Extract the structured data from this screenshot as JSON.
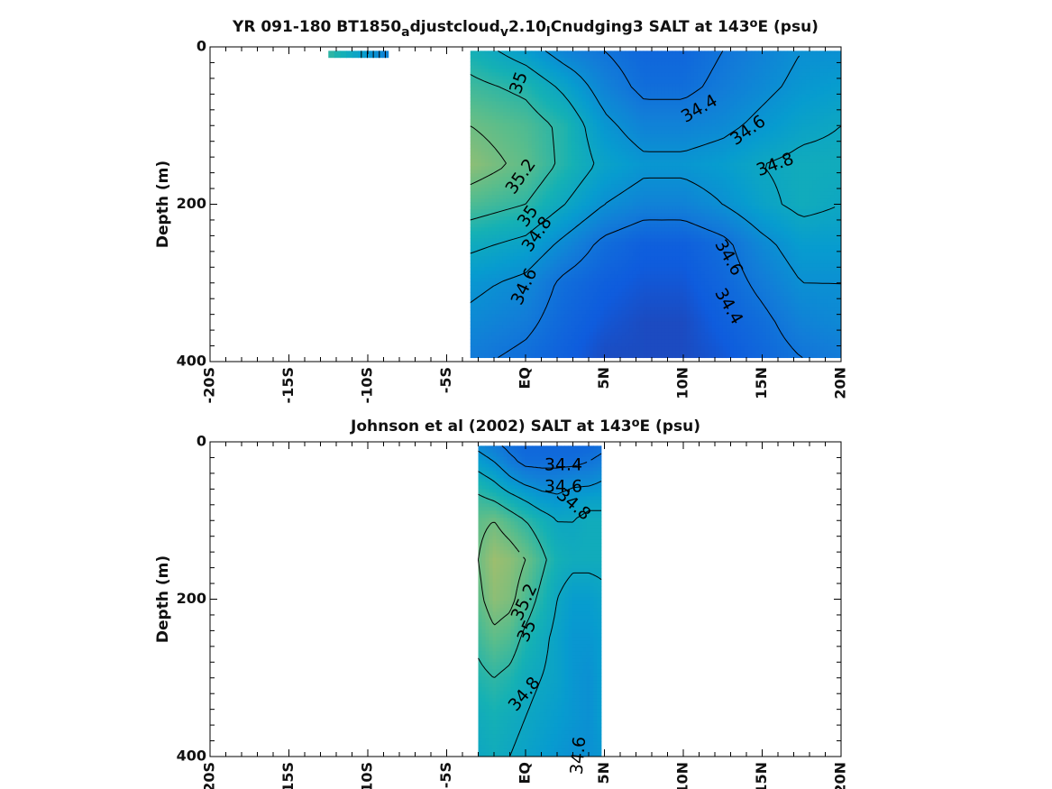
{
  "chart_data": [
    {
      "type": "heatmap",
      "title_parts": [
        "YR 091-180 BT1850",
        "a",
        "djustcloud",
        "v",
        "2.10",
        "l",
        "Cnudging3 SALT at 143",
        "o",
        "E (psu)"
      ],
      "ylabel": "Depth (m)",
      "xlim": [
        -20,
        20
      ],
      "ylim": [
        0,
        400
      ],
      "y_reversed": true,
      "x_ticks": [
        -20,
        -15,
        -10,
        -5,
        0,
        5,
        10,
        15,
        20
      ],
      "x_tick_labels": [
        "-20S",
        "-15S",
        "-10S",
        "-5S",
        "EQ",
        "5N",
        "10N",
        "15N",
        "20N"
      ],
      "y_ticks": [
        0,
        200,
        400
      ],
      "y_tick_labels": [
        "0",
        "200",
        "400"
      ],
      "data_extent": {
        "x": [
          -3.5,
          20
        ],
        "depth": [
          5,
          395
        ]
      },
      "small_patch_extent": {
        "x": [
          -12.5,
          -8.7
        ],
        "depth": [
          5,
          14
        ]
      },
      "colormap": "parula",
      "color_range": [
        34.0,
        35.6
      ],
      "grid": {
        "x": [
          -3.5,
          0,
          2.5,
          5,
          7.5,
          10,
          12.5,
          15,
          17.5,
          20
        ],
        "depth": [
          5,
          50,
          100,
          150,
          200,
          250,
          300,
          350,
          395
        ],
        "values": [
          [
            34.9,
            34.7,
            34.5,
            34.4,
            34.3,
            34.3,
            34.4,
            34.5,
            34.6,
            34.6
          ],
          [
            35.05,
            34.95,
            34.75,
            34.5,
            34.35,
            34.35,
            34.45,
            34.55,
            34.65,
            34.7
          ],
          [
            35.2,
            35.1,
            34.95,
            34.65,
            34.5,
            34.5,
            34.55,
            34.65,
            34.75,
            34.8
          ],
          [
            35.3,
            35.15,
            34.95,
            34.75,
            34.65,
            34.65,
            34.7,
            34.8,
            34.85,
            34.85
          ],
          [
            35.1,
            35.0,
            34.8,
            34.6,
            34.5,
            34.5,
            34.6,
            34.75,
            34.85,
            34.8
          ],
          [
            34.85,
            34.75,
            34.55,
            34.35,
            34.25,
            34.25,
            34.35,
            34.55,
            34.7,
            34.7
          ],
          [
            34.65,
            34.55,
            34.35,
            34.25,
            34.2,
            34.2,
            34.3,
            34.45,
            34.6,
            34.6
          ],
          [
            34.55,
            34.45,
            34.3,
            34.2,
            34.15,
            34.15,
            34.25,
            34.35,
            34.5,
            34.55
          ],
          [
            34.45,
            34.35,
            34.25,
            34.15,
            34.15,
            34.15,
            34.2,
            34.3,
            34.4,
            34.45
          ]
        ]
      },
      "contour_levels": [
        34.4,
        34.6,
        34.8,
        35,
        35.2
      ],
      "contour_labels": [
        "35",
        "34.4",
        "34.6",
        "34.8",
        "35.2",
        "35",
        "34.8",
        "34.6",
        "34.6",
        "34.4"
      ]
    },
    {
      "type": "heatmap",
      "title_parts": [
        "Johnson et al (2002) SALT at 143",
        "o",
        "E (psu)"
      ],
      "ylabel": "Depth (m)",
      "xlim": [
        -20,
        20
      ],
      "ylim": [
        0,
        400
      ],
      "y_reversed": true,
      "x_ticks": [
        -20,
        -15,
        -10,
        -5,
        0,
        5,
        10,
        15,
        20
      ],
      "x_tick_labels": [
        "-20S",
        "-15S",
        "-10S",
        "-5S",
        "EQ",
        "5N",
        "10N",
        "15N",
        "20N"
      ],
      "y_ticks": [
        0,
        200,
        400
      ],
      "y_tick_labels": [
        "0",
        "200",
        "400"
      ],
      "data_extent": {
        "x": [
          -3,
          4.8
        ],
        "depth": [
          5,
          400
        ]
      },
      "colormap": "parula",
      "color_range": [
        34.0,
        35.6
      ],
      "grid": {
        "x": [
          -3,
          -2,
          -1,
          0,
          1,
          2,
          3,
          4,
          4.8
        ],
        "depth": [
          5,
          25,
          50,
          75,
          100,
          150,
          200,
          250,
          300,
          350,
          400
        ],
        "values": [
          [
            34.55,
            34.45,
            34.35,
            34.3,
            34.3,
            34.3,
            34.3,
            34.3,
            34.35
          ],
          [
            34.7,
            34.6,
            34.45,
            34.35,
            34.35,
            34.35,
            34.35,
            34.4,
            34.45
          ],
          [
            34.9,
            34.8,
            34.65,
            34.55,
            34.5,
            34.5,
            34.55,
            34.55,
            34.6
          ],
          [
            35.05,
            35.0,
            34.9,
            34.8,
            34.7,
            34.65,
            34.7,
            34.75,
            34.75
          ],
          [
            35.15,
            35.2,
            35.1,
            35.0,
            34.9,
            34.8,
            34.8,
            34.85,
            34.85
          ],
          [
            35.2,
            35.35,
            35.3,
            35.2,
            35.05,
            34.9,
            34.85,
            34.85,
            34.85
          ],
          [
            35.15,
            35.3,
            35.25,
            35.1,
            34.95,
            34.8,
            34.7,
            34.7,
            34.75
          ],
          [
            35.05,
            35.15,
            35.1,
            34.95,
            34.85,
            34.75,
            34.65,
            34.65,
            34.7
          ],
          [
            34.95,
            35.0,
            34.95,
            34.85,
            34.8,
            34.75,
            34.65,
            34.6,
            34.7
          ],
          [
            34.85,
            34.9,
            34.85,
            34.8,
            34.75,
            34.7,
            34.65,
            34.6,
            34.7
          ],
          [
            34.8,
            34.85,
            34.8,
            34.75,
            34.7,
            34.65,
            34.6,
            34.6,
            34.65
          ]
        ]
      },
      "contour_levels": [
        34.4,
        34.6,
        34.8,
        35,
        35.2
      ],
      "contour_labels": [
        "34.4",
        "34.6",
        "34.8",
        "35.2",
        "35",
        "34.8",
        "34.6"
      ]
    }
  ]
}
